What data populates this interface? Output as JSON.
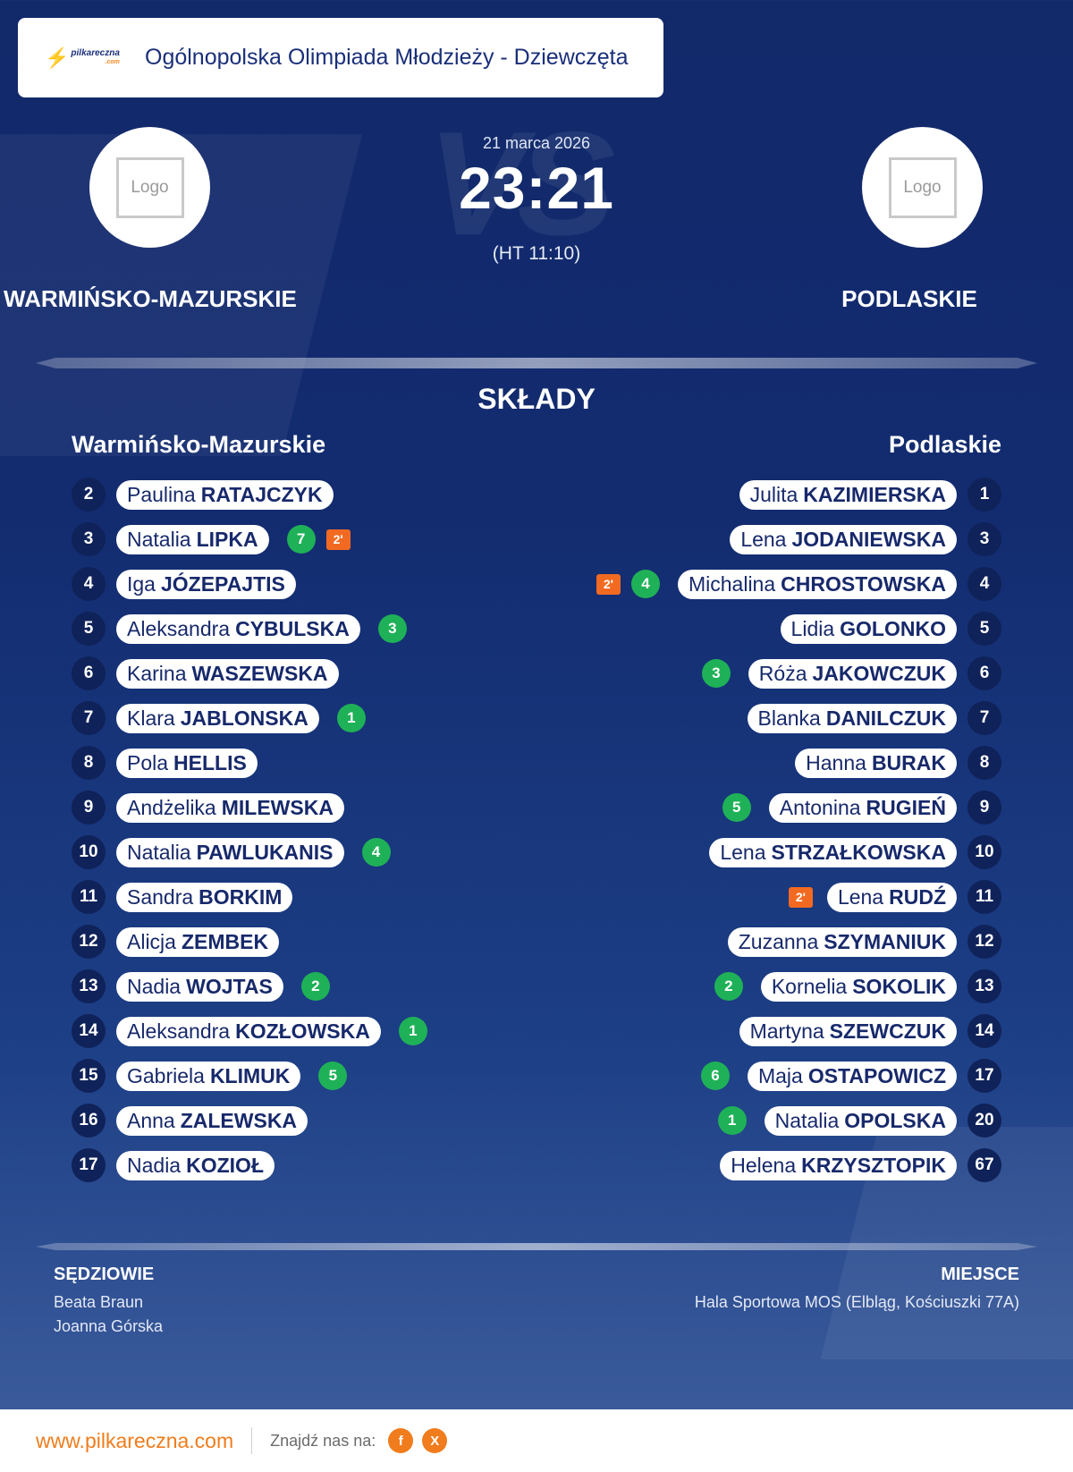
{
  "header": {
    "brand_main": "pilkareczna",
    "brand_sub": ".com",
    "competition": "Ogólnopolska Olimpiada Młodzieży - Dziewczęta"
  },
  "match": {
    "watermark": "VS",
    "date": "21 marca 2026",
    "score": "23:21",
    "halftime": "(HT 11:10)",
    "logo_placeholder": "Logo",
    "home": "WARMIŃSKO-MAZURSKIE",
    "away": "PODLASKIE"
  },
  "lineups": {
    "title": "SKŁADY",
    "home_name": "Warmińsko-Mazurskie",
    "away_name": "Podlaskie",
    "home": [
      {
        "no": "2",
        "first": "Paulina",
        "last": "RATAJCZYK",
        "goals": "",
        "susp": ""
      },
      {
        "no": "3",
        "first": "Natalia",
        "last": "LIPKA",
        "goals": "7",
        "susp": "2'"
      },
      {
        "no": "4",
        "first": "Iga",
        "last": "JÓZEPAJTIS",
        "goals": "",
        "susp": ""
      },
      {
        "no": "5",
        "first": "Aleksandra",
        "last": "CYBULSKA",
        "goals": "3",
        "susp": ""
      },
      {
        "no": "6",
        "first": "Karina",
        "last": "WASZEWSKA",
        "goals": "",
        "susp": ""
      },
      {
        "no": "7",
        "first": "Klara",
        "last": "JABLONSKA",
        "goals": "1",
        "susp": ""
      },
      {
        "no": "8",
        "first": "Pola",
        "last": "HELLIS",
        "goals": "",
        "susp": ""
      },
      {
        "no": "9",
        "first": "Andżelika",
        "last": "MILEWSKA",
        "goals": "",
        "susp": ""
      },
      {
        "no": "10",
        "first": "Natalia",
        "last": "PAWLUKANIS",
        "goals": "4",
        "susp": ""
      },
      {
        "no": "11",
        "first": "Sandra",
        "last": "BORKIM",
        "goals": "",
        "susp": ""
      },
      {
        "no": "12",
        "first": "Alicja",
        "last": "ZEMBEK",
        "goals": "",
        "susp": ""
      },
      {
        "no": "13",
        "first": "Nadia",
        "last": "WOJTAS",
        "goals": "2",
        "susp": ""
      },
      {
        "no": "14",
        "first": "Aleksandra",
        "last": "KOZŁOWSKA",
        "goals": "1",
        "susp": ""
      },
      {
        "no": "15",
        "first": "Gabriela",
        "last": "KLIMUK",
        "goals": "5",
        "susp": ""
      },
      {
        "no": "16",
        "first": "Anna",
        "last": "ZALEWSKA",
        "goals": "",
        "susp": ""
      },
      {
        "no": "17",
        "first": "Nadia",
        "last": "KOZIOŁ",
        "goals": "",
        "susp": ""
      }
    ],
    "away": [
      {
        "no": "1",
        "first": "Julita",
        "last": "KAZIMIERSKA",
        "goals": "",
        "susp": ""
      },
      {
        "no": "3",
        "first": "Lena",
        "last": "JODANIEWSKA",
        "goals": "",
        "susp": ""
      },
      {
        "no": "4",
        "first": "Michalina",
        "last": "CHROSTOWSKA",
        "goals": "4",
        "susp": "2'"
      },
      {
        "no": "5",
        "first": "Lidia",
        "last": "GOLONKO",
        "goals": "",
        "susp": ""
      },
      {
        "no": "6",
        "first": "Róża",
        "last": "JAKOWCZUK",
        "goals": "3",
        "susp": ""
      },
      {
        "no": "7",
        "first": "Blanka",
        "last": "DANILCZUK",
        "goals": "",
        "susp": ""
      },
      {
        "no": "8",
        "first": "Hanna",
        "last": "BURAK",
        "goals": "",
        "susp": ""
      },
      {
        "no": "9",
        "first": "Antonina",
        "last": "RUGIEŃ",
        "goals": "5",
        "susp": ""
      },
      {
        "no": "10",
        "first": "Lena",
        "last": "STRZAŁKOWSKA",
        "goals": "",
        "susp": ""
      },
      {
        "no": "11",
        "first": "Lena",
        "last": "RUDŹ",
        "goals": "",
        "susp": "2'"
      },
      {
        "no": "12",
        "first": "Zuzanna",
        "last": "SZYMANIUK",
        "goals": "",
        "susp": ""
      },
      {
        "no": "13",
        "first": "Kornelia",
        "last": "SOKOLIK",
        "goals": "2",
        "susp": ""
      },
      {
        "no": "14",
        "first": "Martyna",
        "last": "SZEWCZUK",
        "goals": "",
        "susp": ""
      },
      {
        "no": "17",
        "first": "Maja",
        "last": "OSTAPOWICZ",
        "goals": "6",
        "susp": ""
      },
      {
        "no": "20",
        "first": "Natalia",
        "last": "OPOLSKA",
        "goals": "1",
        "susp": ""
      },
      {
        "no": "67",
        "first": "Helena",
        "last": "KRZYSZTOPIK",
        "goals": "",
        "susp": ""
      }
    ]
  },
  "officials": {
    "referees_label": "SĘDZIOWIE",
    "referees": [
      "Beata Braun",
      "Joanna Górska"
    ],
    "venue_label": "MIEJSCE",
    "venue": "Hala Sportowa MOS (Elbląg, Kościuszki 77A)"
  },
  "footer": {
    "site": "www.pilkareczna.com",
    "find_us": "Znajdź nas na:",
    "social": [
      {
        "label": "f",
        "icon": "facebook-icon"
      },
      {
        "label": "X",
        "icon": "x-icon"
      }
    ]
  },
  "colors": {
    "background": "#132c70",
    "goal_badge": "#1fb157",
    "suspension_badge": "#f26a21",
    "accent": "#f07c1d"
  }
}
